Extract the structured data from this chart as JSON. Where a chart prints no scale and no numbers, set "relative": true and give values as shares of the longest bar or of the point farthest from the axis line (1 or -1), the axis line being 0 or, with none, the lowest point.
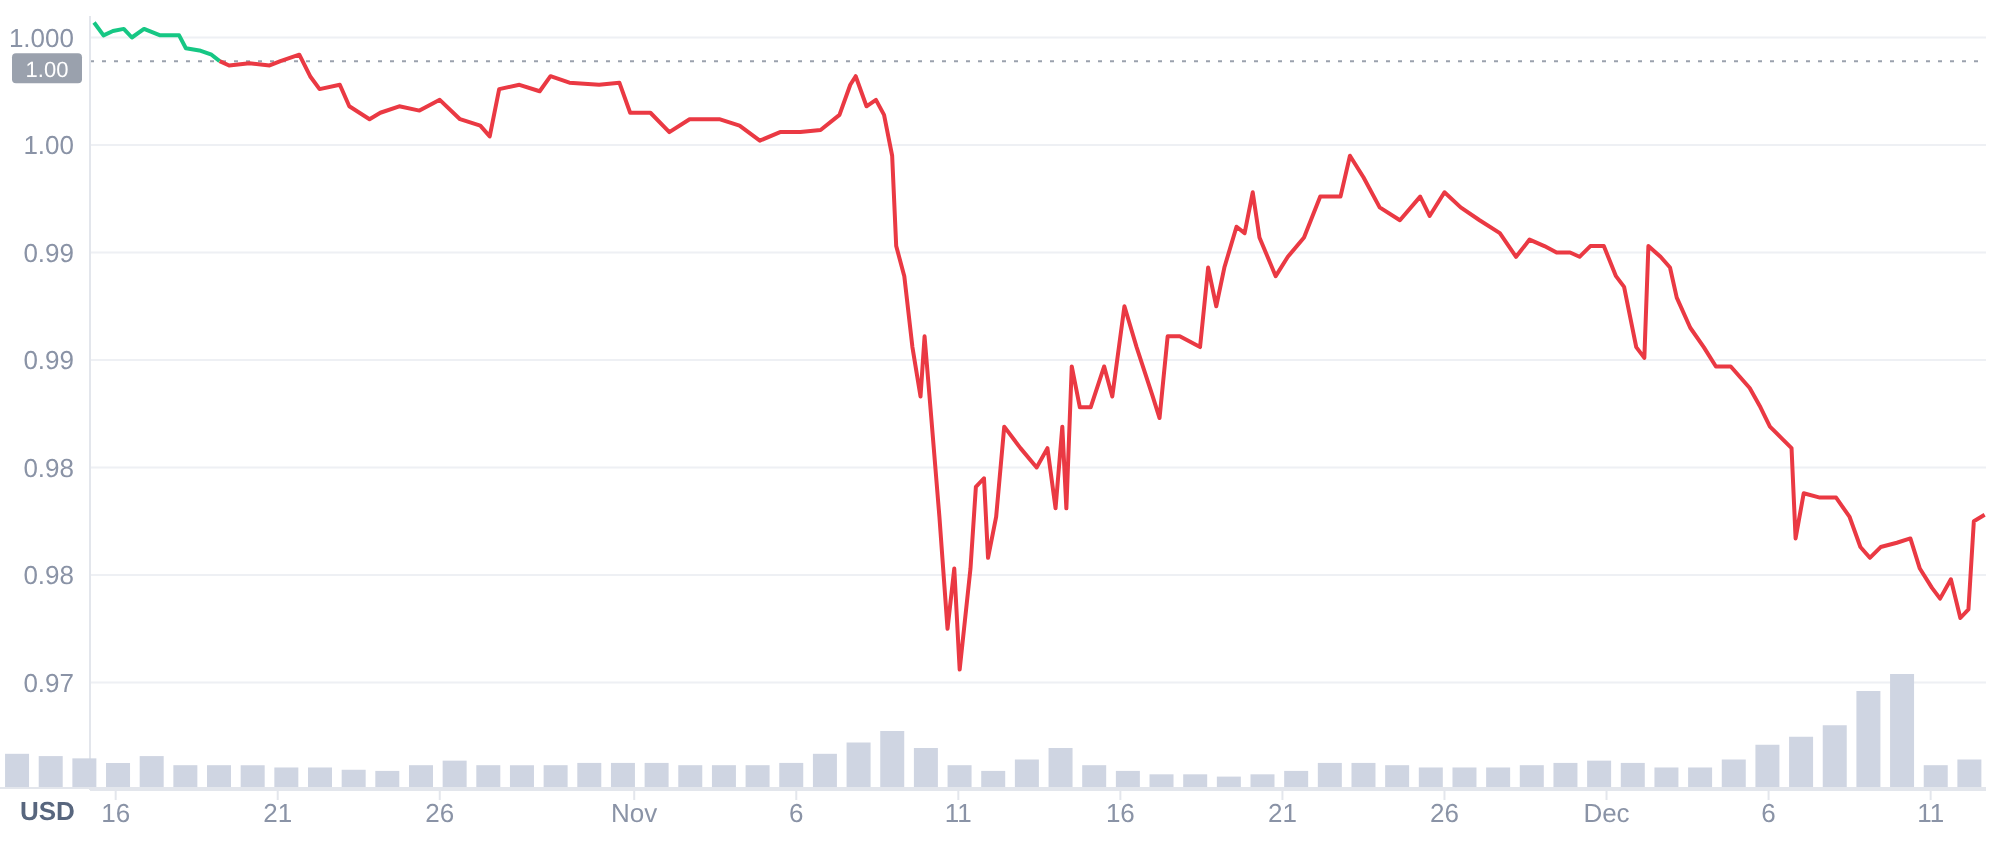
{
  "chart_data": [
    {
      "type": "line",
      "ylabel": "USD",
      "xlim": [
        "--10-15T05:00",
        "--12-12T17:00"
      ],
      "xticks": [
        {
          "value": "--10-16",
          "label": "16"
        },
        {
          "value": "--10-21",
          "label": "21"
        },
        {
          "value": "--10-26",
          "label": "26"
        },
        {
          "value": "--11-01",
          "label": "Nov"
        },
        {
          "value": "--11-06",
          "label": "6"
        },
        {
          "value": "--11-11",
          "label": "11"
        },
        {
          "value": "--11-16",
          "label": "16"
        },
        {
          "value": "--11-21",
          "label": "21"
        },
        {
          "value": "--11-26",
          "label": "26"
        },
        {
          "value": "--12-01",
          "label": "Dec"
        },
        {
          "value": "--12-06",
          "label": "6"
        },
        {
          "value": "--12-11",
          "label": "11"
        }
      ],
      "ylim": [
        0.965,
        1.001
      ],
      "yticks": [
        {
          "value": 0.97,
          "label": "0.97"
        },
        {
          "value": 0.975,
          "label": "0.98"
        },
        {
          "value": 0.98,
          "label": "0.98"
        },
        {
          "value": 0.985,
          "label": "0.99"
        },
        {
          "value": 0.99,
          "label": "0.99"
        },
        {
          "value": 0.995,
          "label": "1.00"
        },
        {
          "value": 1.0,
          "label": "1.000"
        }
      ],
      "grid": "y",
      "ref_lines": [
        {
          "axis": "y",
          "value": 0.9989,
          "label": "1.00",
          "line_style": "dotted",
          "color": "#9aa1ad"
        }
      ],
      "series": [
        {
          "color": "#16c784",
          "x": [
            "--10-15T08:00",
            "--10-15T15:00",
            "--10-15T22:00",
            "--10-16T06:00",
            "--10-16T12:00",
            "--10-16T21:00",
            "--10-17T09:00",
            "--10-17T23:00",
            "--10-18T04:00",
            "--10-18T14:00",
            "--10-18T23:00",
            "--10-19T05:00"
          ],
          "values": [
            1.0007,
            1.0001,
            1.0003,
            1.0004,
            1.0,
            1.0004,
            1.0001,
            1.0001,
            0.9995,
            0.9994,
            0.9992,
            0.9989
          ]
        },
        {
          "color": "#ea3943",
          "x": [
            "--10-19T05:00",
            "--10-19T12:00",
            "--10-20T03:00",
            "--10-20T18:00",
            "--10-21T02:00",
            "--10-21T16:00",
            "--10-22T00:00",
            "--10-22T07:00",
            "--10-22T22:00",
            "--10-23T05:00",
            "--10-23T20:00",
            "--10-24T04:00",
            "--10-24T18:00",
            "--10-25T09:00",
            "--10-26T00:00",
            "--10-26T15:00",
            "--10-27T06:00",
            "--10-27T13:00",
            "--10-27T20:00",
            "--10-28T11:00",
            "--10-29T02:00",
            "--10-29T10:00",
            "--10-30T00:00",
            "--10-30T22:00",
            "--10-31T13:00",
            "--10-31T21:00",
            "--11-01T12:00",
            "--11-02T02:00",
            "--11-02T17:00",
            "--11-03T15:00",
            "--11-04T06:00",
            "--11-04T21:00",
            "--11-05T12:00",
            "--11-06T03:00",
            "--11-06T18:00",
            "--11-07T08:00",
            "--11-07T16:00",
            "--11-07T20:00",
            "--11-08T04:00",
            "--11-08T11:00",
            "--11-08T17:00",
            "--11-08T23:00",
            "--11-09T02:00",
            "--11-09T08:00",
            "--11-09T14:00",
            "--11-09T20:00",
            "--11-09T23:00",
            "--11-10T04:00",
            "--11-10T10:00",
            "--11-10T16:00",
            "--11-10T21:00",
            "--11-11T01:00",
            "--11-11T09:00",
            "--11-11T13:00",
            "--11-11T19:00",
            "--11-11T22:00",
            "--11-12T04:00",
            "--11-12T10:00",
            "--11-12T22:00",
            "--11-13T10:00",
            "--11-13T18:00",
            "--11-14T00:00",
            "--11-14T05:00",
            "--11-14T08:00",
            "--11-14T12:00",
            "--11-14T18:00",
            "--11-15T02:00",
            "--11-15T12:00",
            "--11-15T18:00",
            "--11-16T03:00",
            "--11-16T12:00",
            "--11-17T00:00",
            "--11-17T05:00",
            "--11-17T11:00",
            "--11-17T20:00",
            "--11-18T11:00",
            "--11-18T17:00",
            "--11-18T23:00",
            "--11-19T05:00",
            "--11-19T14:00",
            "--11-19T20:00",
            "--11-20T02:00",
            "--11-20T07:00",
            "--11-20T19:00",
            "--11-21T04:00",
            "--11-21T16:00",
            "--11-22T04:00",
            "--11-22T19:00",
            "--11-23T02:00",
            "--11-23T12:00",
            "--11-24T00:00",
            "--11-24T15:00",
            "--11-25T06:00",
            "--11-25T13:00",
            "--11-26T00:00",
            "--11-26T12:00",
            "--11-27T02:00",
            "--11-27T17:00",
            "--11-28T05:00",
            "--11-28T15:00",
            "--11-29T02:00",
            "--11-29T11:00",
            "--11-29T21:00",
            "--11-30T04:00",
            "--11-30T12:00",
            "--11-30T22:00",
            "--12-01T07:00",
            "--12-01T13:00",
            "--12-01T22:00",
            "--12-02T04:00",
            "--12-02T07:00",
            "--12-02T16:00",
            "--12-02T23:00",
            "--12-03T04:00",
            "--12-03T14:00",
            "--12-04T00:00",
            "--12-04T09:00",
            "--12-04T20:00",
            "--12-05T03:00",
            "--12-05T10:00",
            "--12-05T18:00",
            "--12-06T01:00",
            "--12-06T09:00",
            "--12-06T17:00",
            "--12-06T20:00",
            "--12-07T02:00",
            "--12-07T14:00",
            "--12-08T02:00",
            "--12-08T12:00",
            "--12-08T20:00",
            "--12-09T03:00",
            "--12-09T11:00",
            "--12-09T23:00",
            "--12-10T09:00",
            "--12-10T16:00",
            "--12-11T01:00",
            "--12-11T07:00",
            "--12-11T15:00",
            "--12-11T22:00",
            "--12-12T04:00",
            "--12-12T08:00",
            "--12-12T16:00"
          ],
          "values": [
            0.9989,
            0.9987,
            0.9988,
            0.9987,
            0.9989,
            0.9992,
            0.9982,
            0.9976,
            0.9978,
            0.9968,
            0.9962,
            0.9965,
            0.9968,
            0.9966,
            0.9971,
            0.9962,
            0.9959,
            0.9954,
            0.9976,
            0.9978,
            0.9975,
            0.9982,
            0.9979,
            0.9978,
            0.9979,
            0.9965,
            0.9965,
            0.9956,
            0.9962,
            0.9962,
            0.9959,
            0.9952,
            0.9956,
            0.9956,
            0.9957,
            0.9964,
            0.9978,
            0.9982,
            0.9968,
            0.9971,
            0.9964,
            0.9945,
            0.9903,
            0.9889,
            0.9856,
            0.9833,
            0.9861,
            0.9823,
            0.9777,
            0.9725,
            0.9753,
            0.9706,
            0.9753,
            0.9791,
            0.9795,
            0.9758,
            0.9777,
            0.9819,
            0.9809,
            0.98,
            0.9809,
            0.9781,
            0.9819,
            0.9781,
            0.9847,
            0.9828,
            0.9828,
            0.9847,
            0.9833,
            0.9875,
            0.9856,
            0.9833,
            0.9823,
            0.9861,
            0.9861,
            0.9856,
            0.9893,
            0.9875,
            0.9893,
            0.9912,
            0.9909,
            0.9928,
            0.9907,
            0.9889,
            0.9898,
            0.9907,
            0.9926,
            0.9926,
            0.9945,
            0.9935,
            0.9921,
            0.9915,
            0.9926,
            0.9917,
            0.9928,
            0.9921,
            0.9915,
            0.9909,
            0.9898,
            0.9906,
            0.9903,
            0.99,
            0.99,
            0.9898,
            0.9903,
            0.9903,
            0.9889,
            0.9884,
            0.9856,
            0.9851,
            0.9903,
            0.9898,
            0.9893,
            0.9879,
            0.9865,
            0.9856,
            0.9847,
            0.9847,
            0.9842,
            0.9837,
            0.9828,
            0.9819,
            0.9814,
            0.9809,
            0.9767,
            0.9788,
            0.9786,
            0.9786,
            0.9777,
            0.9763,
            0.9758,
            0.9763,
            0.9765,
            0.9767,
            0.9753,
            0.9744,
            0.9739,
            0.9748,
            0.973,
            0.9734,
            0.9775,
            0.9778
          ]
        }
      ]
    },
    {
      "type": "bar",
      "relative": true,
      "color": "#cfd5e2",
      "categories": [
        null,
        null,
        null,
        null,
        null,
        null,
        null,
        null,
        null,
        null,
        null,
        null,
        null,
        null,
        null,
        null,
        null,
        null,
        null,
        null,
        null,
        null,
        null,
        null,
        null,
        null,
        null,
        null,
        null,
        null,
        null,
        null,
        null,
        null,
        null,
        null,
        null,
        null,
        null,
        null,
        null,
        null,
        null,
        null,
        null,
        null,
        null,
        null,
        null,
        null,
        null,
        null,
        null,
        null,
        null,
        null,
        null,
        null,
        null
      ],
      "values": [
        0.3,
        0.28,
        0.26,
        0.22,
        0.28,
        0.2,
        0.2,
        0.2,
        0.18,
        0.18,
        0.16,
        0.15,
        0.2,
        0.24,
        0.2,
        0.2,
        0.2,
        0.22,
        0.22,
        0.22,
        0.2,
        0.2,
        0.2,
        0.22,
        0.3,
        0.4,
        0.5,
        0.35,
        0.2,
        0.15,
        0.25,
        0.35,
        0.2,
        0.15,
        0.12,
        0.12,
        0.1,
        0.12,
        0.15,
        0.22,
        0.22,
        0.2,
        0.18,
        0.18,
        0.18,
        0.2,
        0.22,
        0.24,
        0.22,
        0.18,
        0.18,
        0.25,
        0.38,
        0.45,
        0.55,
        0.85,
        1,
        0.2,
        0.25
      ]
    }
  ]
}
